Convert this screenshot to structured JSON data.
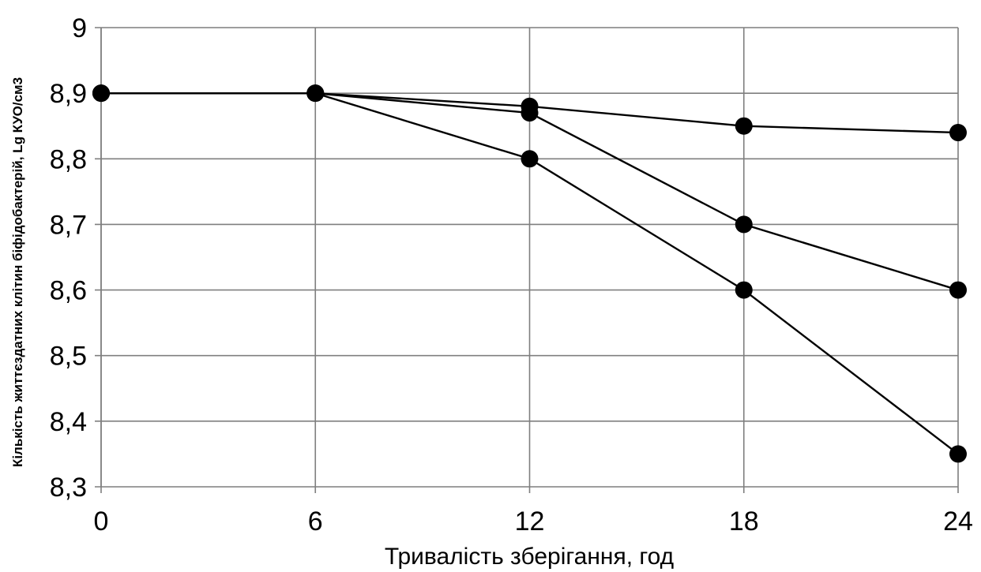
{
  "chart_data": {
    "type": "line",
    "xlabel": "Тривалість зберігання, год",
    "ylabel": "Кількість життєздатних клітин біфідобактерій, Lg КУО/см3",
    "x": [
      0,
      6,
      12,
      18,
      24
    ],
    "x_tick_labels": [
      "0",
      "6",
      "12",
      "18",
      "24"
    ],
    "y_tick_labels": [
      "8,3",
      "8,4",
      "8,5",
      "8,6",
      "8,7",
      "8,8",
      "8,9",
      "9"
    ],
    "ylim": [
      8.3,
      9.0
    ],
    "xlim": [
      0,
      24
    ],
    "grid": true,
    "series": [
      {
        "values": [
          8.9,
          8.9,
          8.88,
          8.85,
          8.84
        ]
      },
      {
        "values": [
          8.9,
          8.9,
          8.87,
          8.7,
          8.6
        ]
      },
      {
        "values": [
          8.9,
          8.9,
          8.8,
          8.6,
          8.35
        ]
      }
    ],
    "marker": "filled-circle",
    "line_color": "#000000",
    "grid_color": "#7f7f7f"
  }
}
